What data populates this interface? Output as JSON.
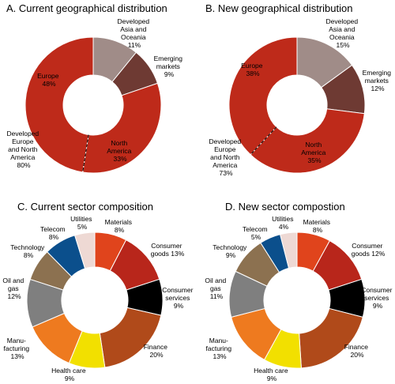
{
  "chart_data": [
    {
      "type": "pie",
      "title": "A. Current geographical distribution",
      "slices": [
        {
          "label": "Developed Asia and Oceania",
          "value": 11,
          "color": "#a08c88"
        },
        {
          "label": "Emerging markets",
          "value": 9,
          "color": "#6e3a33"
        },
        {
          "label": "North America",
          "value": 33,
          "color": "#be2a1a"
        },
        {
          "label": "Europe",
          "value": 48,
          "color": "#be2a1a"
        }
      ],
      "group_label": [
        "Developed",
        "Europe",
        "and North",
        "America",
        "80%"
      ],
      "label_lines": {
        "asia": [
          "Developed",
          "Asia and",
          "Oceania",
          "11%"
        ],
        "emerging": [
          "Emerging",
          "markets",
          "9%"
        ],
        "north_america": [
          "North",
          "America",
          "33%"
        ],
        "europe": [
          "Europe",
          "48%"
        ]
      }
    },
    {
      "type": "pie",
      "title": "B. New geographical distribution",
      "slices": [
        {
          "label": "Developed Asia and Oceania",
          "value": 15,
          "color": "#a08c88"
        },
        {
          "label": "Emerging markets",
          "value": 12,
          "color": "#6e3a33"
        },
        {
          "label": "North America",
          "value": 35,
          "color": "#be2a1a"
        },
        {
          "label": "Europe",
          "value": 38,
          "color": "#be2a1a"
        }
      ],
      "group_label": [
        "Developed",
        "Europe",
        "and North",
        "America",
        "73%"
      ],
      "label_lines": {
        "asia": [
          "Developed",
          "Asia and",
          "Oceania",
          "15%"
        ],
        "emerging": [
          "Emerging",
          "markets",
          "12%"
        ],
        "north_america": [
          "North",
          "America",
          "35%"
        ],
        "europe": [
          "Europe",
          "38%"
        ]
      }
    },
    {
      "type": "pie",
      "title": "C. Current sector composition",
      "slices": [
        {
          "label": "Materials",
          "value": 8,
          "color": "#e0441c"
        },
        {
          "label": "Consumer goods",
          "value": 13,
          "color": "#b8261b"
        },
        {
          "label": "Consumer services",
          "value": 9,
          "color": "#000000"
        },
        {
          "label": "Finance",
          "value": 20,
          "color": "#b04a1a"
        },
        {
          "label": "Health care",
          "value": 9,
          "color": "#f2e000"
        },
        {
          "label": "Manufacturing",
          "value": 13,
          "color": "#ee7a1f"
        },
        {
          "label": "Oil and gas",
          "value": 12,
          "color": "#7f7f7f"
        },
        {
          "label": "Technology",
          "value": 8,
          "color": "#8c7150"
        },
        {
          "label": "Telecom",
          "value": 8,
          "color": "#0b4f8c"
        },
        {
          "label": "Utilities",
          "value": 5,
          "color": "#eed9d4"
        }
      ],
      "label_lines": {
        "materials": [
          "Materials",
          "8%"
        ],
        "consumer_goods": [
          "Consumer",
          "goods 13%"
        ],
        "consumer_services": [
          "Consumer",
          "services",
          "9%"
        ],
        "finance": [
          "Finance",
          "20%"
        ],
        "health_care": [
          "Health care",
          "9%"
        ],
        "manufacturing": [
          "Manu-",
          "facturing",
          "13%"
        ],
        "oil_and_gas": [
          "Oil and",
          "gas",
          "12%"
        ],
        "technology": [
          "Technology",
          "8%"
        ],
        "telecom": [
          "Telecom",
          "8%"
        ],
        "utilities": [
          "Utilities",
          "5%"
        ]
      }
    },
    {
      "type": "pie",
      "title": "D. New sector compostion",
      "slices": [
        {
          "label": "Materials",
          "value": 8,
          "color": "#e0441c"
        },
        {
          "label": "Consumer goods",
          "value": 12,
          "color": "#b8261b"
        },
        {
          "label": "Consumer services",
          "value": 9,
          "color": "#000000"
        },
        {
          "label": "Finance",
          "value": 20,
          "color": "#b04a1a"
        },
        {
          "label": "Health care",
          "value": 9,
          "color": "#f2e000"
        },
        {
          "label": "Manufacturing",
          "value": 13,
          "color": "#ee7a1f"
        },
        {
          "label": "Oil and gas",
          "value": 11,
          "color": "#7f7f7f"
        },
        {
          "label": "Technology",
          "value": 9,
          "color": "#8c7150"
        },
        {
          "label": "Telecom",
          "value": 5,
          "color": "#0b4f8c"
        },
        {
          "label": "Utilities",
          "value": 4,
          "color": "#eed9d4"
        }
      ],
      "label_lines": {
        "materials": [
          "Materials",
          "8%"
        ],
        "consumer_goods": [
          "Consumer",
          "goods 12%"
        ],
        "consumer_services": [
          "Consumer",
          "services",
          "9%"
        ],
        "finance": [
          "Finance",
          "20%"
        ],
        "health_care": [
          "Health care",
          "9%"
        ],
        "manufacturing": [
          "Manu-",
          "facturing",
          "13%"
        ],
        "oil_and_gas": [
          "Oil and",
          "gas",
          "11%"
        ],
        "technology": [
          "Technology",
          "9%"
        ],
        "telecom": [
          "Telecom",
          "5%"
        ],
        "utilities": [
          "Utilities",
          "4%"
        ]
      }
    }
  ]
}
